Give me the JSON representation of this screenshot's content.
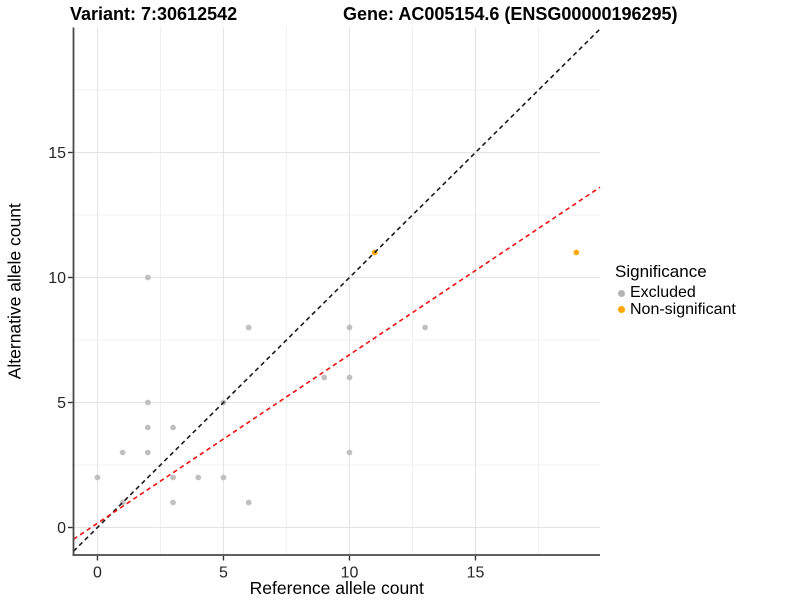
{
  "chart_data": {
    "type": "scatter",
    "title_left": "Variant: 7:30612542",
    "title_right": "Gene: AC005154.6 (ENSG00000196295)",
    "xlabel": "Reference allele count",
    "ylabel": "Alternative allele count",
    "xlim": [
      -0.95,
      19.94
    ],
    "ylim": [
      -1.1,
      20.0
    ],
    "x_major_ticks": [
      0,
      5,
      10,
      15
    ],
    "y_major_ticks": [
      0,
      5,
      10,
      15
    ],
    "x_minor_gridlines": [
      2.5,
      7.5,
      12.5,
      17.5
    ],
    "y_minor_gridlines": [
      2.5,
      7.5,
      12.5,
      17.5
    ],
    "grid": true,
    "series": [
      {
        "name": "Excluded",
        "color": "#bdbdbd",
        "points": [
          [
            0,
            2
          ],
          [
            1,
            1
          ],
          [
            1,
            3
          ],
          [
            2,
            3
          ],
          [
            2,
            4
          ],
          [
            2,
            5
          ],
          [
            2,
            10
          ],
          [
            3,
            1
          ],
          [
            3,
            2
          ],
          [
            3,
            4
          ],
          [
            4,
            2
          ],
          [
            5,
            2
          ],
          [
            5,
            5
          ],
          [
            6,
            1
          ],
          [
            6,
            8
          ],
          [
            9,
            6
          ],
          [
            10,
            3
          ],
          [
            10,
            6
          ],
          [
            10,
            8
          ],
          [
            13,
            8
          ]
        ]
      },
      {
        "name": "Non-significant",
        "color": "#ffa500",
        "points": [
          [
            11,
            11
          ],
          [
            19,
            11
          ]
        ]
      }
    ],
    "reference_lines": [
      {
        "name": "identity-line",
        "slope": 1.0,
        "intercept": 0.0,
        "color": "#1a1a1a",
        "style": "dashed"
      },
      {
        "name": "fit-line",
        "slope": 0.674,
        "intercept": 0.17,
        "color": "#f01010",
        "style": "dashed"
      }
    ],
    "legend": {
      "title": "Significance",
      "position": "right",
      "items": [
        {
          "label": "Excluded",
          "color": "#b3b3b3"
        },
        {
          "label": "Non-significant",
          "color": "#ffa500"
        }
      ]
    },
    "colors": {
      "grid_major": "#e4e4e4",
      "grid_minor": "#f0f0f0",
      "axis_line": "#4a4a4a",
      "tick_text": "#262626"
    }
  }
}
